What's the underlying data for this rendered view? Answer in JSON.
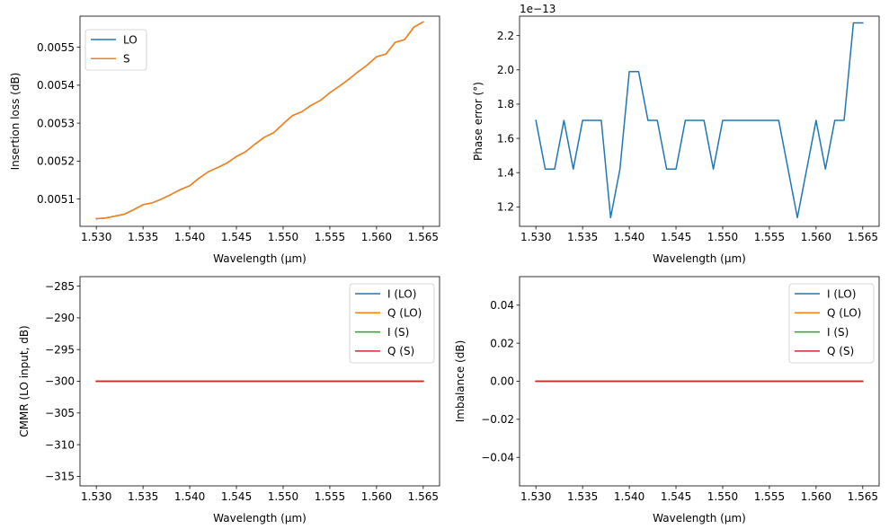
{
  "colors": {
    "blue": "#1f77b4",
    "orange": "#ff7f0e",
    "green": "#2ca02c",
    "red": "#d62728"
  },
  "chart_data": [
    {
      "type": "line",
      "xlabel": "Wavelength (µm)",
      "ylabel": "Insertion loss (dB)",
      "xlim": [
        1.52825,
        1.56675
      ],
      "ylim": [
        0.005028,
        0.005582
      ],
      "xticks": [
        1.53,
        1.535,
        1.54,
        1.545,
        1.55,
        1.555,
        1.56,
        1.565
      ],
      "xtick_labels": [
        "1.530",
        "1.535",
        "1.540",
        "1.545",
        "1.550",
        "1.555",
        "1.560",
        "1.565"
      ],
      "yticks": [
        0.0051,
        0.0052,
        0.0053,
        0.0054,
        0.0055
      ],
      "ytick_labels": [
        "0.0051",
        "0.0052",
        "0.0053",
        "0.0054",
        "0.0055"
      ],
      "offset_text": "",
      "legend": "upper left",
      "x": [
        1.53,
        1.531,
        1.532,
        1.533,
        1.534,
        1.535,
        1.536,
        1.537,
        1.538,
        1.539,
        1.54,
        1.541,
        1.542,
        1.543,
        1.544,
        1.545,
        1.546,
        1.547,
        1.548,
        1.549,
        1.55,
        1.551,
        1.552,
        1.553,
        1.554,
        1.555,
        1.556,
        1.557,
        1.558,
        1.559,
        1.56,
        1.561,
        1.562,
        1.563,
        1.564,
        1.565
      ],
      "series": [
        {
          "name": "LO",
          "color": "#1f77b4",
          "values": [
            0.005048,
            0.00505,
            0.005055,
            0.00506,
            0.005072,
            0.005085,
            0.00509,
            0.0051,
            0.005112,
            0.005125,
            0.005135,
            0.005155,
            0.005172,
            0.005183,
            0.005195,
            0.005212,
            0.005225,
            0.005245,
            0.005263,
            0.005275,
            0.005298,
            0.00532,
            0.00533,
            0.005347,
            0.00536,
            0.00538,
            0.005397,
            0.005415,
            0.005435,
            0.005453,
            0.005475,
            0.005482,
            0.005513,
            0.00552,
            0.005553,
            0.005567
          ]
        },
        {
          "name": "S",
          "color": "#ff7f0e",
          "values": [
            0.005048,
            0.00505,
            0.005055,
            0.00506,
            0.005072,
            0.005085,
            0.00509,
            0.0051,
            0.005112,
            0.005125,
            0.005135,
            0.005155,
            0.005172,
            0.005183,
            0.005195,
            0.005212,
            0.005225,
            0.005245,
            0.005263,
            0.005275,
            0.005298,
            0.00532,
            0.00533,
            0.005347,
            0.00536,
            0.00538,
            0.005397,
            0.005415,
            0.005435,
            0.005453,
            0.005475,
            0.005482,
            0.005513,
            0.00552,
            0.005553,
            0.005567
          ]
        }
      ]
    },
    {
      "type": "line",
      "xlabel": "Wavelength (µm)",
      "ylabel": "Phase error (°)",
      "xlim": [
        1.52825,
        1.56675
      ],
      "ylim": [
        1.0865,
        2.3136
      ],
      "xticks": [
        1.53,
        1.535,
        1.54,
        1.545,
        1.55,
        1.555,
        1.56,
        1.565
      ],
      "xtick_labels": [
        "1.530",
        "1.535",
        "1.540",
        "1.545",
        "1.550",
        "1.555",
        "1.560",
        "1.565"
      ],
      "yticks": [
        1.2,
        1.4,
        1.6,
        1.8,
        2.0,
        2.2
      ],
      "ytick_labels": [
        "1.2",
        "1.4",
        "1.6",
        "1.8",
        "2.0",
        "2.2"
      ],
      "offset_text": "1e−13",
      "legend": "none",
      "x": [
        1.53,
        1.531,
        1.532,
        1.533,
        1.534,
        1.535,
        1.536,
        1.537,
        1.538,
        1.539,
        1.54,
        1.541,
        1.542,
        1.543,
        1.544,
        1.545,
        1.546,
        1.547,
        1.548,
        1.549,
        1.55,
        1.551,
        1.552,
        1.553,
        1.554,
        1.555,
        1.556,
        1.557,
        1.558,
        1.559,
        1.56,
        1.561,
        1.562,
        1.563,
        1.564,
        1.565
      ],
      "series": [
        {
          "color": "#1f77b4",
          "values": [
            1.705,
            1.421,
            1.421,
            1.705,
            1.421,
            1.705,
            1.705,
            1.705,
            1.137,
            1.421,
            1.99,
            1.99,
            1.705,
            1.705,
            1.421,
            1.421,
            1.705,
            1.705,
            1.705,
            1.421,
            1.705,
            1.705,
            1.705,
            1.705,
            1.705,
            1.705,
            1.705,
            1.421,
            1.137,
            1.421,
            1.705,
            1.421,
            1.705,
            1.705,
            2.274,
            2.274
          ]
        }
      ]
    },
    {
      "type": "line",
      "xlabel": "Wavelength (µm)",
      "ylabel": "CMMR (LO input, dB)",
      "xlim": [
        1.52825,
        1.56675
      ],
      "ylim": [
        -316.5,
        -283.5
      ],
      "xticks": [
        1.53,
        1.535,
        1.54,
        1.545,
        1.55,
        1.555,
        1.56,
        1.565
      ],
      "xtick_labels": [
        "1.530",
        "1.535",
        "1.540",
        "1.545",
        "1.550",
        "1.555",
        "1.560",
        "1.565"
      ],
      "yticks": [
        -315,
        -310,
        -305,
        -300,
        -295,
        -290,
        -285
      ],
      "ytick_labels": [
        "−315",
        "−310",
        "−305",
        "−300",
        "−295",
        "−290",
        "−285"
      ],
      "offset_text": "",
      "legend": "upper right",
      "x": [
        1.53,
        1.565
      ],
      "series": [
        {
          "name": "I (LO)",
          "color": "#1f77b4",
          "values": [
            -300,
            -300
          ]
        },
        {
          "name": "Q (LO)",
          "color": "#ff7f0e",
          "values": [
            -300,
            -300
          ]
        },
        {
          "name": "I (S)",
          "color": "#2ca02c",
          "values": [
            -300,
            -300
          ]
        },
        {
          "name": "Q (S)",
          "color": "#d62728",
          "values": [
            -300,
            -300
          ]
        }
      ]
    },
    {
      "type": "line",
      "xlabel": "Wavelength (µm)",
      "ylabel": "Imbalance (dB)",
      "xlim": [
        1.52825,
        1.56675
      ],
      "ylim": [
        -0.055,
        0.055
      ],
      "xticks": [
        1.53,
        1.535,
        1.54,
        1.545,
        1.55,
        1.555,
        1.56,
        1.565
      ],
      "xtick_labels": [
        "1.530",
        "1.535",
        "1.540",
        "1.545",
        "1.550",
        "1.555",
        "1.560",
        "1.565"
      ],
      "yticks": [
        -0.04,
        -0.02,
        0.0,
        0.02,
        0.04
      ],
      "ytick_labels": [
        "−0.04",
        "−0.02",
        "0.00",
        "0.02",
        "0.04"
      ],
      "offset_text": "",
      "legend": "upper right",
      "x": [
        1.53,
        1.565
      ],
      "series": [
        {
          "name": "I (LO)",
          "color": "#1f77b4",
          "values": [
            0,
            0
          ]
        },
        {
          "name": "Q (LO)",
          "color": "#ff7f0e",
          "values": [
            0,
            0
          ]
        },
        {
          "name": "I (S)",
          "color": "#2ca02c",
          "values": [
            0,
            0
          ]
        },
        {
          "name": "Q (S)",
          "color": "#d62728",
          "values": [
            0,
            0
          ]
        }
      ]
    }
  ]
}
